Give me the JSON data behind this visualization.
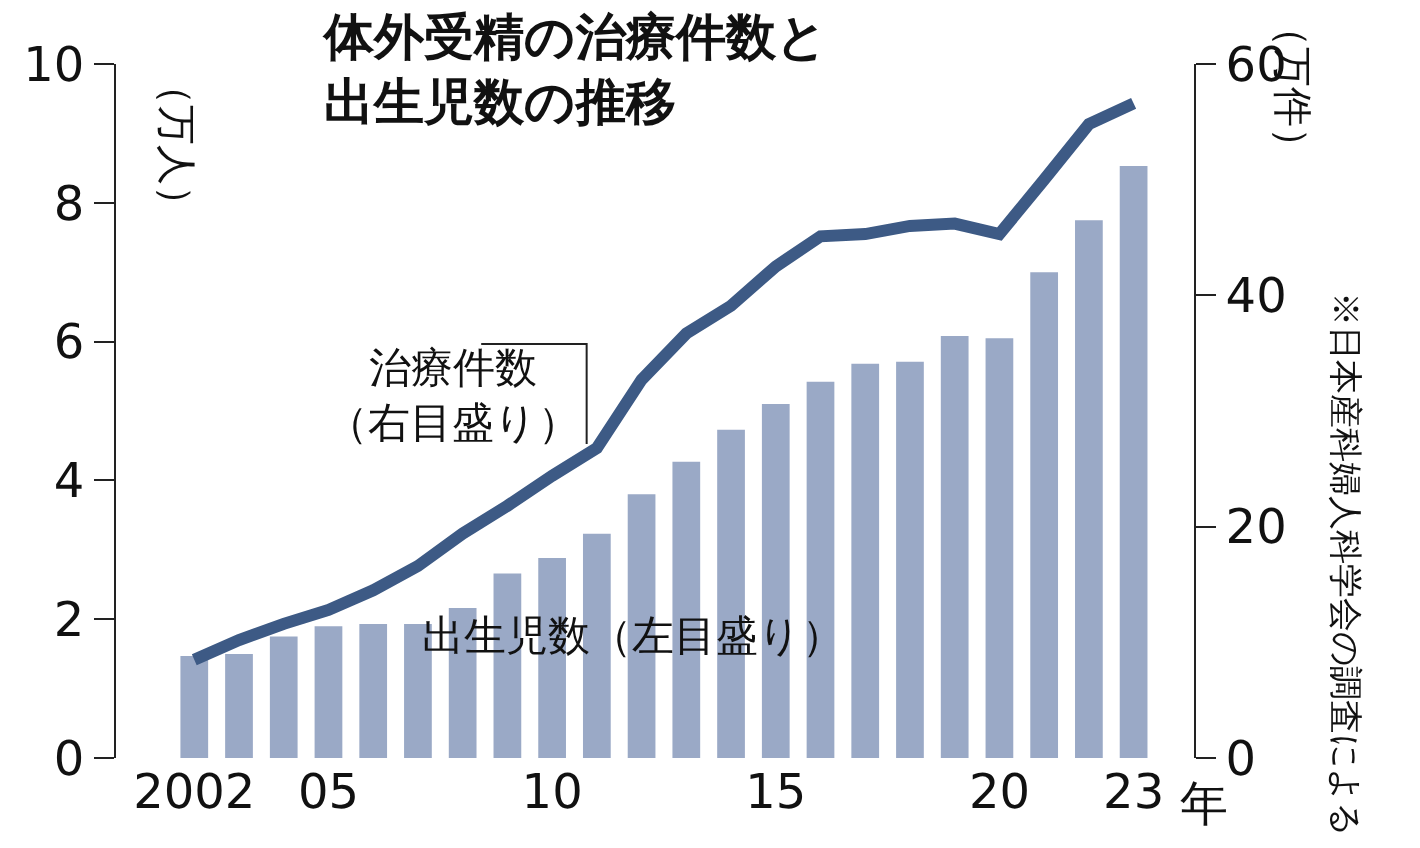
{
  "chart_data": {
    "type": "bar",
    "title": "体外受精の治療件数と出生児数の推移",
    "xlabel": "年",
    "ylabel": "（万人）",
    "y2label": "（万件）",
    "x": [
      2002,
      2003,
      2004,
      2005,
      2006,
      2007,
      2008,
      2009,
      2010,
      2011,
      2012,
      2013,
      2014,
      2015,
      2016,
      2017,
      2018,
      2019,
      2020,
      2021,
      2022,
      2023
    ],
    "series": [
      {
        "name": "出生児数（左目盛り）",
        "color": "#9aa9c6",
        "values": [
          1.47,
          1.5,
          1.75,
          1.9,
          1.93,
          1.93,
          2.16,
          2.66,
          2.88,
          3.23,
          3.8,
          4.27,
          4.73,
          5.1,
          5.42,
          5.68,
          5.71,
          6.08,
          6.05,
          7.0,
          7.75,
          8.53
        ]
      },
      {
        "name": "治療件数（右目盛り）",
        "type": "line",
        "axis": "y2",
        "color": "#3d5a85",
        "values": [
          8.5,
          10.2,
          11.6,
          12.8,
          14.5,
          16.6,
          19.4,
          21.8,
          24.4,
          26.8,
          32.7,
          36.7,
          39.1,
          42.5,
          45.1,
          45.3,
          46.0,
          46.2,
          45.3,
          50.0,
          54.8,
          56.6
        ]
      }
    ],
    "xlim": [
      2000.25,
      2024.35
    ],
    "xticks": [
      2002,
      {
        "value": 2005,
        "label": "05"
      },
      {
        "value": 2010,
        "label": "10"
      },
      {
        "value": 2015,
        "label": "15"
      },
      {
        "value": 2020,
        "label": "20"
      },
      {
        "value": 2023,
        "label": "23"
      }
    ],
    "ylim": [
      0,
      10
    ],
    "yticks": [
      0,
      2,
      4,
      6,
      8,
      10
    ],
    "y2lim": [
      0,
      60
    ],
    "y2ticks": [
      0,
      20,
      40,
      60
    ],
    "annotations": [
      "※日本産科婦人科学会の調査による"
    ],
    "legend": false,
    "line_style": "solid",
    "marker": "none"
  }
}
